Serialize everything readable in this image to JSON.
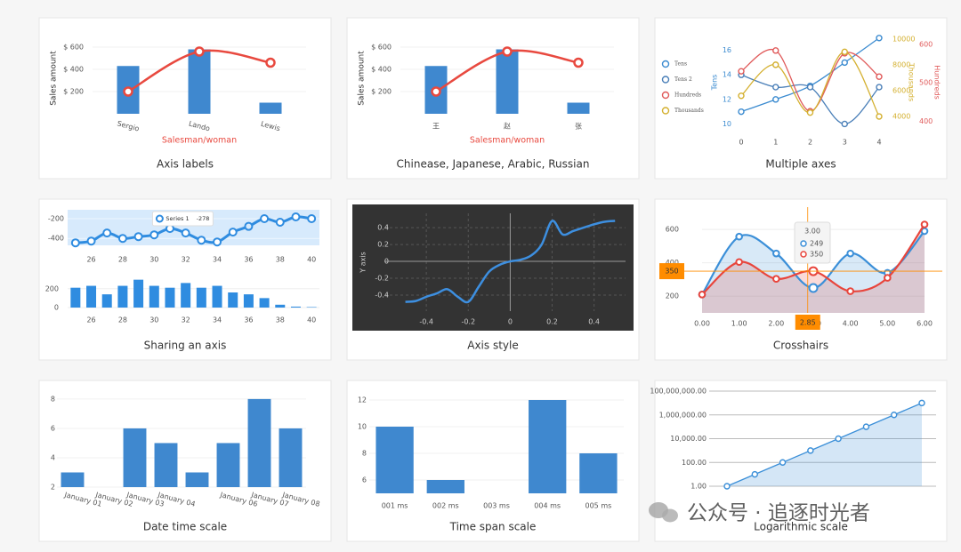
{
  "chart_data": [
    {
      "type": "combo",
      "title": "Axis labels",
      "categories": [
        "Sergio",
        "Lando",
        "Lewis"
      ],
      "x_label_rotation": 15,
      "series": [
        {
          "color": "#3f88cf",
          "values": [
            430,
            580,
            100
          ]
        },
        {
          "color": "#e8493f",
          "values": [
            200,
            560,
            460
          ]
        }
      ],
      "ylim": [
        0,
        640
      ],
      "yticks": [
        {
          "value": 200,
          "label": "$ 200"
        },
        {
          "value": 400,
          "label": "$ 400"
        },
        {
          "value": 600,
          "label": "$ 600"
        }
      ],
      "y_label": "Sales amount",
      "x_label": "Salesman/woman",
      "x_label_color": "#e8493f"
    },
    {
      "type": "combo",
      "title": "Chinease, Japanese, Arabic, Russian",
      "categories": [
        "王",
        "赵",
        "张"
      ],
      "x_label_rotation": 0,
      "series": [
        {
          "color": "#3f88cf",
          "values": [
            430,
            580,
            100
          ]
        },
        {
          "color": "#e8493f",
          "values": [
            200,
            560,
            460
          ]
        }
      ],
      "ylim": [
        0,
        640
      ],
      "yticks": [
        {
          "value": 200,
          "label": "$ 200"
        },
        {
          "value": 400,
          "label": "$ 400"
        },
        {
          "value": 600,
          "label": "$ 600"
        }
      ],
      "y_label": "Sales amount",
      "x_label": "Salesman/woman",
      "x_label_color": "#e8493f"
    },
    {
      "type": "line",
      "title": "Multiple axes",
      "x": [
        0,
        1,
        2,
        3,
        4
      ],
      "xlim": [
        0,
        4
      ],
      "xticks": [
        0,
        1,
        2,
        3,
        4
      ],
      "smooth": true,
      "markers": true,
      "legend": "left",
      "ylim": [
        9.6,
        17.2
      ],
      "yticks": [
        10,
        12,
        14,
        16
      ],
      "y_label": "Tens",
      "y2lim": [
        3040,
        10260
      ],
      "y2ticks": [
        4000,
        6000,
        8000,
        10000
      ],
      "y2_label": "Thousands",
      "y3lim": [
        380,
        623
      ],
      "y3ticks": [
        400,
        500,
        600
      ],
      "y3_label": "Hundreds",
      "series": [
        {
          "name": "Tens",
          "color": "#3b8bd0",
          "values": [
            11,
            12,
            13.1,
            15,
            17
          ]
        },
        {
          "name": "Tens 2",
          "color": "#4a7fb8",
          "values": [
            14,
            13,
            13,
            10,
            13
          ]
        },
        {
          "name": "Hundreds",
          "color": "#e05a5a",
          "axis": "y3",
          "values": [
            530,
            584,
            426,
            577,
            516
          ]
        },
        {
          "name": "Thousands",
          "color": "#d4b030",
          "axis": "y2",
          "values": [
            5600,
            8000,
            4300,
            9000,
            4000
          ]
        }
      ]
    },
    {
      "type": "shared",
      "title": "Sharing an axis",
      "x": [
        25,
        26,
        27,
        28,
        29,
        30,
        31,
        32,
        33,
        34,
        35,
        36,
        37,
        38,
        39,
        40
      ],
      "xlim": [
        24.5,
        40.5
      ],
      "xticks": [
        26,
        28,
        30,
        32,
        34,
        36,
        38,
        40
      ],
      "ylim": [
        -470,
        -110
      ],
      "yticks": [
        -400,
        -200
      ],
      "y2lim": [
        0,
        320
      ],
      "y2ticks": [
        0,
        200
      ],
      "hover_index": 11,
      "series": [
        {
          "name": "Series 1",
          "color": "#2f8ce0",
          "values": [
            -445,
            -427,
            -345,
            -400,
            -382,
            -364,
            -300,
            -345,
            -418,
            -436,
            -336,
            -278,
            -200,
            -236,
            -182,
            -200
          ]
        },
        {
          "color": "#2f8ce0",
          "axis": "y2",
          "values": [
            210,
            230,
            140,
            230,
            295,
            230,
            210,
            260,
            210,
            230,
            160,
            140,
            100,
            30,
            10,
            5
          ]
        }
      ]
    },
    {
      "type": "line",
      "title": "Axis style",
      "background": "#333333",
      "grid": true,
      "smooth": true,
      "x": [
        -0.5,
        -0.45,
        -0.4,
        -0.35,
        -0.3,
        -0.25,
        -0.2,
        -0.15,
        -0.1,
        -0.05,
        0,
        0.05,
        0.1,
        0.15,
        0.2,
        0.25,
        0.3,
        0.35,
        0.4,
        0.45,
        0.5
      ],
      "xlim": [
        -0.6,
        0.55
      ],
      "xticks": [
        -0.4,
        -0.2,
        0,
        0.2,
        0.4
      ],
      "ylim": [
        -0.59,
        0.57
      ],
      "yticks": [
        -0.4,
        -0.2,
        0,
        0.2,
        0.4
      ],
      "y_label": "Y axis",
      "series": [
        {
          "color": "#3d8fe0",
          "values": [
            -0.48,
            -0.47,
            -0.42,
            -0.38,
            -0.33,
            -0.42,
            -0.48,
            -0.3,
            -0.12,
            -0.04,
            0,
            0.02,
            0.07,
            0.2,
            0.48,
            0.32,
            0.36,
            0.4,
            0.44,
            0.47,
            0.48
          ]
        }
      ]
    },
    {
      "type": "area",
      "title": "Crosshairs",
      "x": [
        0,
        1,
        2,
        3,
        4,
        5,
        6
      ],
      "xlim": [
        0,
        6
      ],
      "xticks": [
        {
          "value": 0,
          "label": "0.00"
        },
        {
          "value": 1,
          "label": "1.00"
        },
        {
          "value": 2,
          "label": "2.00"
        },
        {
          "value": 3,
          "label": "3.00"
        },
        {
          "value": 4,
          "label": "4.00"
        },
        {
          "value": 5,
          "label": "5.00"
        },
        {
          "value": 6,
          "label": "6.00"
        }
      ],
      "ylim": [
        100,
        670
      ],
      "yticks": [
        200,
        400,
        600
      ],
      "crosshair": {
        "x": 2.85,
        "y": 350
      },
      "crosshair_color": "#ff8c00",
      "series": [
        {
          "color": "#3b8fd8",
          "values": [
            210,
            557,
            456,
            249,
            456,
            340,
            590
          ]
        },
        {
          "color": "#e8453c",
          "values": [
            210,
            405,
            304,
            350,
            230,
            310,
            630
          ]
        }
      ]
    },
    {
      "type": "bar",
      "title": "Date time scale",
      "color": "#3f88cf",
      "x_label_rotation": 15,
      "categories": [
        "January 01",
        "January 02",
        "January 03",
        "January 04",
        null,
        "January 06",
        "January 07",
        "January 08"
      ],
      "values": [
        3,
        null,
        6,
        5,
        3,
        5,
        8,
        6
      ],
      "ylim": [
        2,
        8.6
      ],
      "yticks": [
        2,
        4,
        6,
        8
      ]
    },
    {
      "type": "bar",
      "title": "Time span scale",
      "color": "#3f88cf",
      "x_label_rotation": 0,
      "categories": [
        "001 ms",
        "002 ms",
        "003 ms",
        "004 ms",
        "005 ms"
      ],
      "values": [
        10,
        6,
        null,
        12,
        8
      ],
      "ylim": [
        5,
        12.6
      ],
      "yticks": [
        6,
        8,
        10,
        12
      ]
    },
    {
      "type": "line",
      "title": "Logarithmic scale",
      "log_scale": true,
      "grid": true,
      "area": true,
      "markers": true,
      "ylim": [
        1,
        100000000
      ],
      "yticks": [
        {
          "value": 1,
          "label": "1.00"
        },
        {
          "value": 100,
          "label": "100.00"
        },
        {
          "value": 10000,
          "label": "10,000.00"
        },
        {
          "value": 1000000,
          "label": "1,000,000.00"
        },
        {
          "value": 100000000,
          "label": "100,000,000.00"
        }
      ],
      "series": [
        {
          "color": "#3b8fd8",
          "values": [
            1,
            10,
            100,
            1000,
            10000,
            100000,
            1000000,
            10000000
          ]
        }
      ]
    }
  ],
  "watermark": "公众号 · 追逐时光者"
}
